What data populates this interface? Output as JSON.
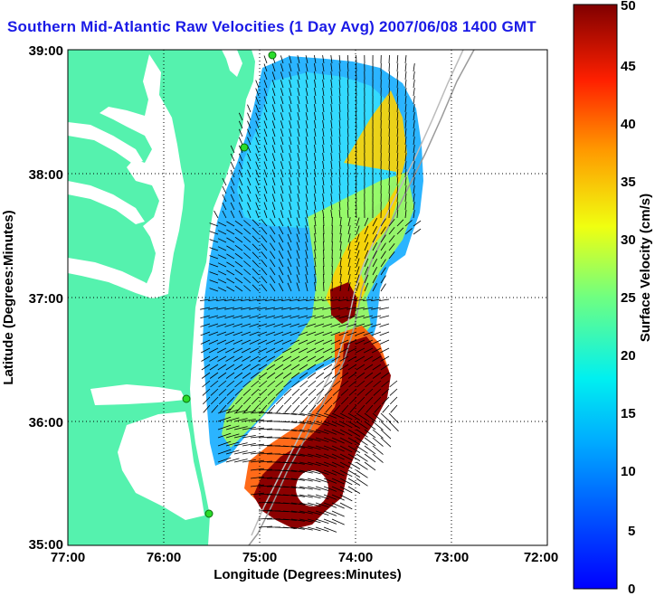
{
  "title": "Southern Mid-Atlantic Raw Velocities (1 Day Avg) 2007/06/08 1400 GMT",
  "x_axis": {
    "label": "Longitude (Degrees:Minutes)",
    "ticks": [
      "77:00",
      "76:00",
      "75:00",
      "74:00",
      "73:00",
      "72:00"
    ],
    "range": [
      -77,
      -72
    ]
  },
  "y_axis": {
    "label": "Latitude (Degrees:Minutes)",
    "ticks": [
      "39:00",
      "38:00",
      "37:00",
      "36:00",
      "35:00"
    ],
    "range": [
      35,
      39
    ]
  },
  "colorbar": {
    "label": "Surface Velocity (cm/s)",
    "ticks": [
      "50",
      "45",
      "40",
      "35",
      "30",
      "25",
      "20",
      "15",
      "10",
      "5",
      "0"
    ],
    "range": [
      0,
      50
    ],
    "colormap": "jet"
  },
  "colors": {
    "land": "#55f2ae",
    "title": "#1a1ae6",
    "station": "#2bdc2b"
  },
  "icons": {
    "station": "green-dot-icon",
    "vector": "arrow-icon"
  }
}
